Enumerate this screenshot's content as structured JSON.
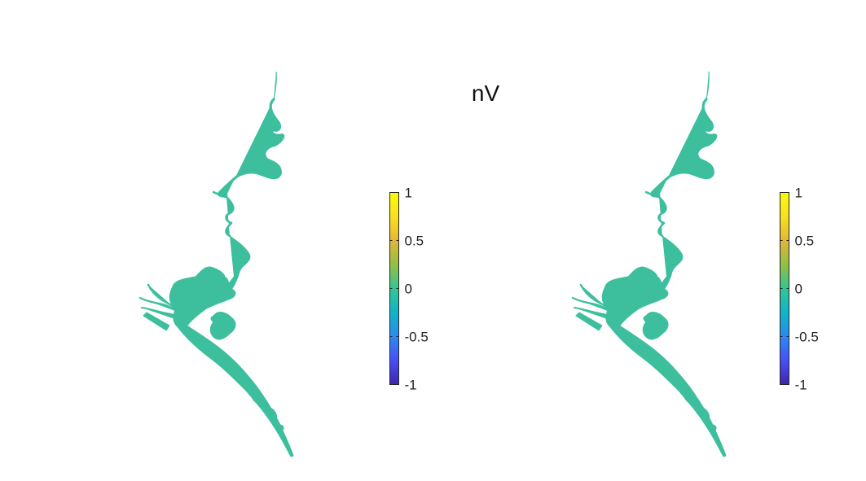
{
  "figure": {
    "title": "nV"
  },
  "colors": {
    "water": "#3dbf9e",
    "colormap": [
      "#3e26a8",
      "#4750f6",
      "#2c89f0",
      "#11b4c8",
      "#34c593",
      "#92bf44",
      "#e1b738",
      "#f9e01f",
      "#f9fb0e"
    ]
  },
  "panels": [
    {
      "name": "left",
      "colorbar": {
        "ticks": [
          "1",
          "0.5",
          "0",
          "-0.5",
          "-1"
        ],
        "range": [
          -1,
          1
        ]
      }
    },
    {
      "name": "right",
      "colorbar": {
        "ticks": [
          "1",
          "0.5",
          "0",
          "-0.5",
          "-1"
        ],
        "range": [
          -1,
          1
        ]
      }
    }
  ]
}
